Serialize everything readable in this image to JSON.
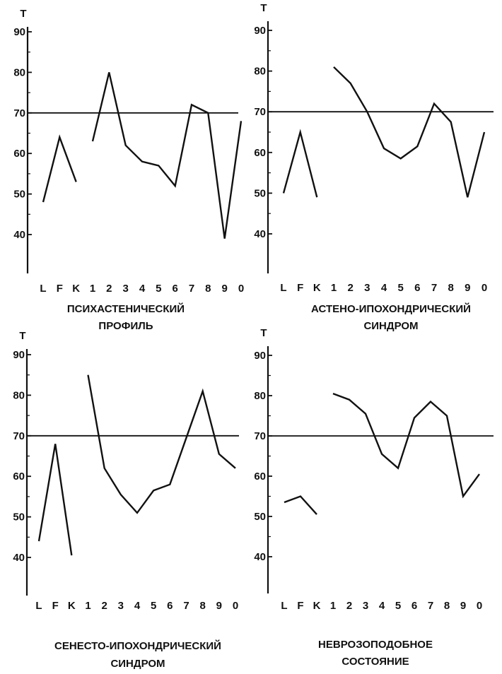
{
  "chart_data": [
    {
      "type": "line",
      "axis_symbol": "T",
      "yticks": [
        40,
        50,
        60,
        70,
        80,
        90
      ],
      "ylim": [
        30,
        92
      ],
      "reference_line": 70,
      "x_ticks": [
        "L",
        "F",
        "K",
        "1",
        "2",
        "3",
        "4",
        "5",
        "6",
        "7",
        "8",
        "9",
        "0"
      ],
      "series": [
        {
          "x": [
            "L",
            "F",
            "K"
          ],
          "values": [
            48,
            64,
            53
          ]
        },
        {
          "x": [
            "1",
            "2",
            "3",
            "4",
            "5",
            "6",
            "7",
            "8",
            "9",
            "0"
          ],
          "values": [
            63,
            80,
            62,
            58,
            57,
            52,
            72,
            70,
            39,
            68
          ]
        }
      ],
      "caption": [
        "ПСИХАСТЕНИЧЕСКИЙ",
        "ПРОФИЛЬ"
      ]
    },
    {
      "type": "line",
      "axis_symbol": "T",
      "yticks": [
        40,
        50,
        60,
        70,
        80,
        90
      ],
      "ylim": [
        30,
        92
      ],
      "reference_line": 70,
      "x_ticks": [
        "L",
        "F",
        "K",
        "1",
        "2",
        "3",
        "4",
        "5",
        "6",
        "7",
        "8",
        "9",
        "0"
      ],
      "series": [
        {
          "x": [
            "L",
            "F",
            "K"
          ],
          "values": [
            50,
            65,
            49
          ]
        },
        {
          "x": [
            "1",
            "2",
            "3",
            "4",
            "5",
            "6",
            "7",
            "8",
            "9",
            "0"
          ],
          "values": [
            81,
            77,
            70,
            61,
            58.5,
            61.5,
            72,
            67.5,
            49,
            65
          ]
        }
      ],
      "caption": [
        "АСТЕНО-ИПОХОНДРИЧЕСКИЙ",
        "СИНДРОМ"
      ]
    },
    {
      "type": "line",
      "axis_symbol": "T",
      "yticks": [
        40,
        50,
        60,
        70,
        80,
        90
      ],
      "ylim": [
        30,
        92
      ],
      "reference_line": 70,
      "x_ticks": [
        "L",
        "F",
        "K",
        "1",
        "2",
        "3",
        "4",
        "5",
        "6",
        "7",
        "8",
        "9",
        "0"
      ],
      "series": [
        {
          "x": [
            "L",
            "F",
            "K"
          ],
          "values": [
            44,
            68,
            40.5
          ]
        },
        {
          "x": [
            "1",
            "2",
            "3",
            "4",
            "5",
            "6",
            "7",
            "8",
            "9",
            "0"
          ],
          "values": [
            85,
            62,
            55.5,
            51,
            56.5,
            58,
            69.5,
            81,
            65.5,
            62
          ]
        }
      ],
      "caption": [
        "СЕНЕСТО-ИПОХОНДРИЧЕСКИЙ",
        "СИНДРОМ"
      ]
    },
    {
      "type": "line",
      "axis_symbol": "T",
      "yticks": [
        40,
        50,
        60,
        70,
        80,
        90
      ],
      "ylim": [
        30,
        92
      ],
      "reference_line": 70,
      "x_ticks": [
        "L",
        "F",
        "K",
        "1",
        "2",
        "3",
        "4",
        "5",
        "6",
        "7",
        "8",
        "9",
        "0"
      ],
      "series": [
        {
          "x": [
            "L",
            "F",
            "K"
          ],
          "values": [
            53.5,
            55,
            50.5
          ]
        },
        {
          "x": [
            "1",
            "2",
            "3",
            "4",
            "5",
            "6",
            "7",
            "8",
            "9",
            "0"
          ],
          "values": [
            80.5,
            79,
            75.5,
            65.5,
            62,
            74.5,
            78.5,
            75,
            55,
            60.5
          ]
        }
      ],
      "caption": [
        "НЕВРОЗОПОДОБНОЕ",
        "СОСТОЯНИЕ"
      ]
    }
  ]
}
